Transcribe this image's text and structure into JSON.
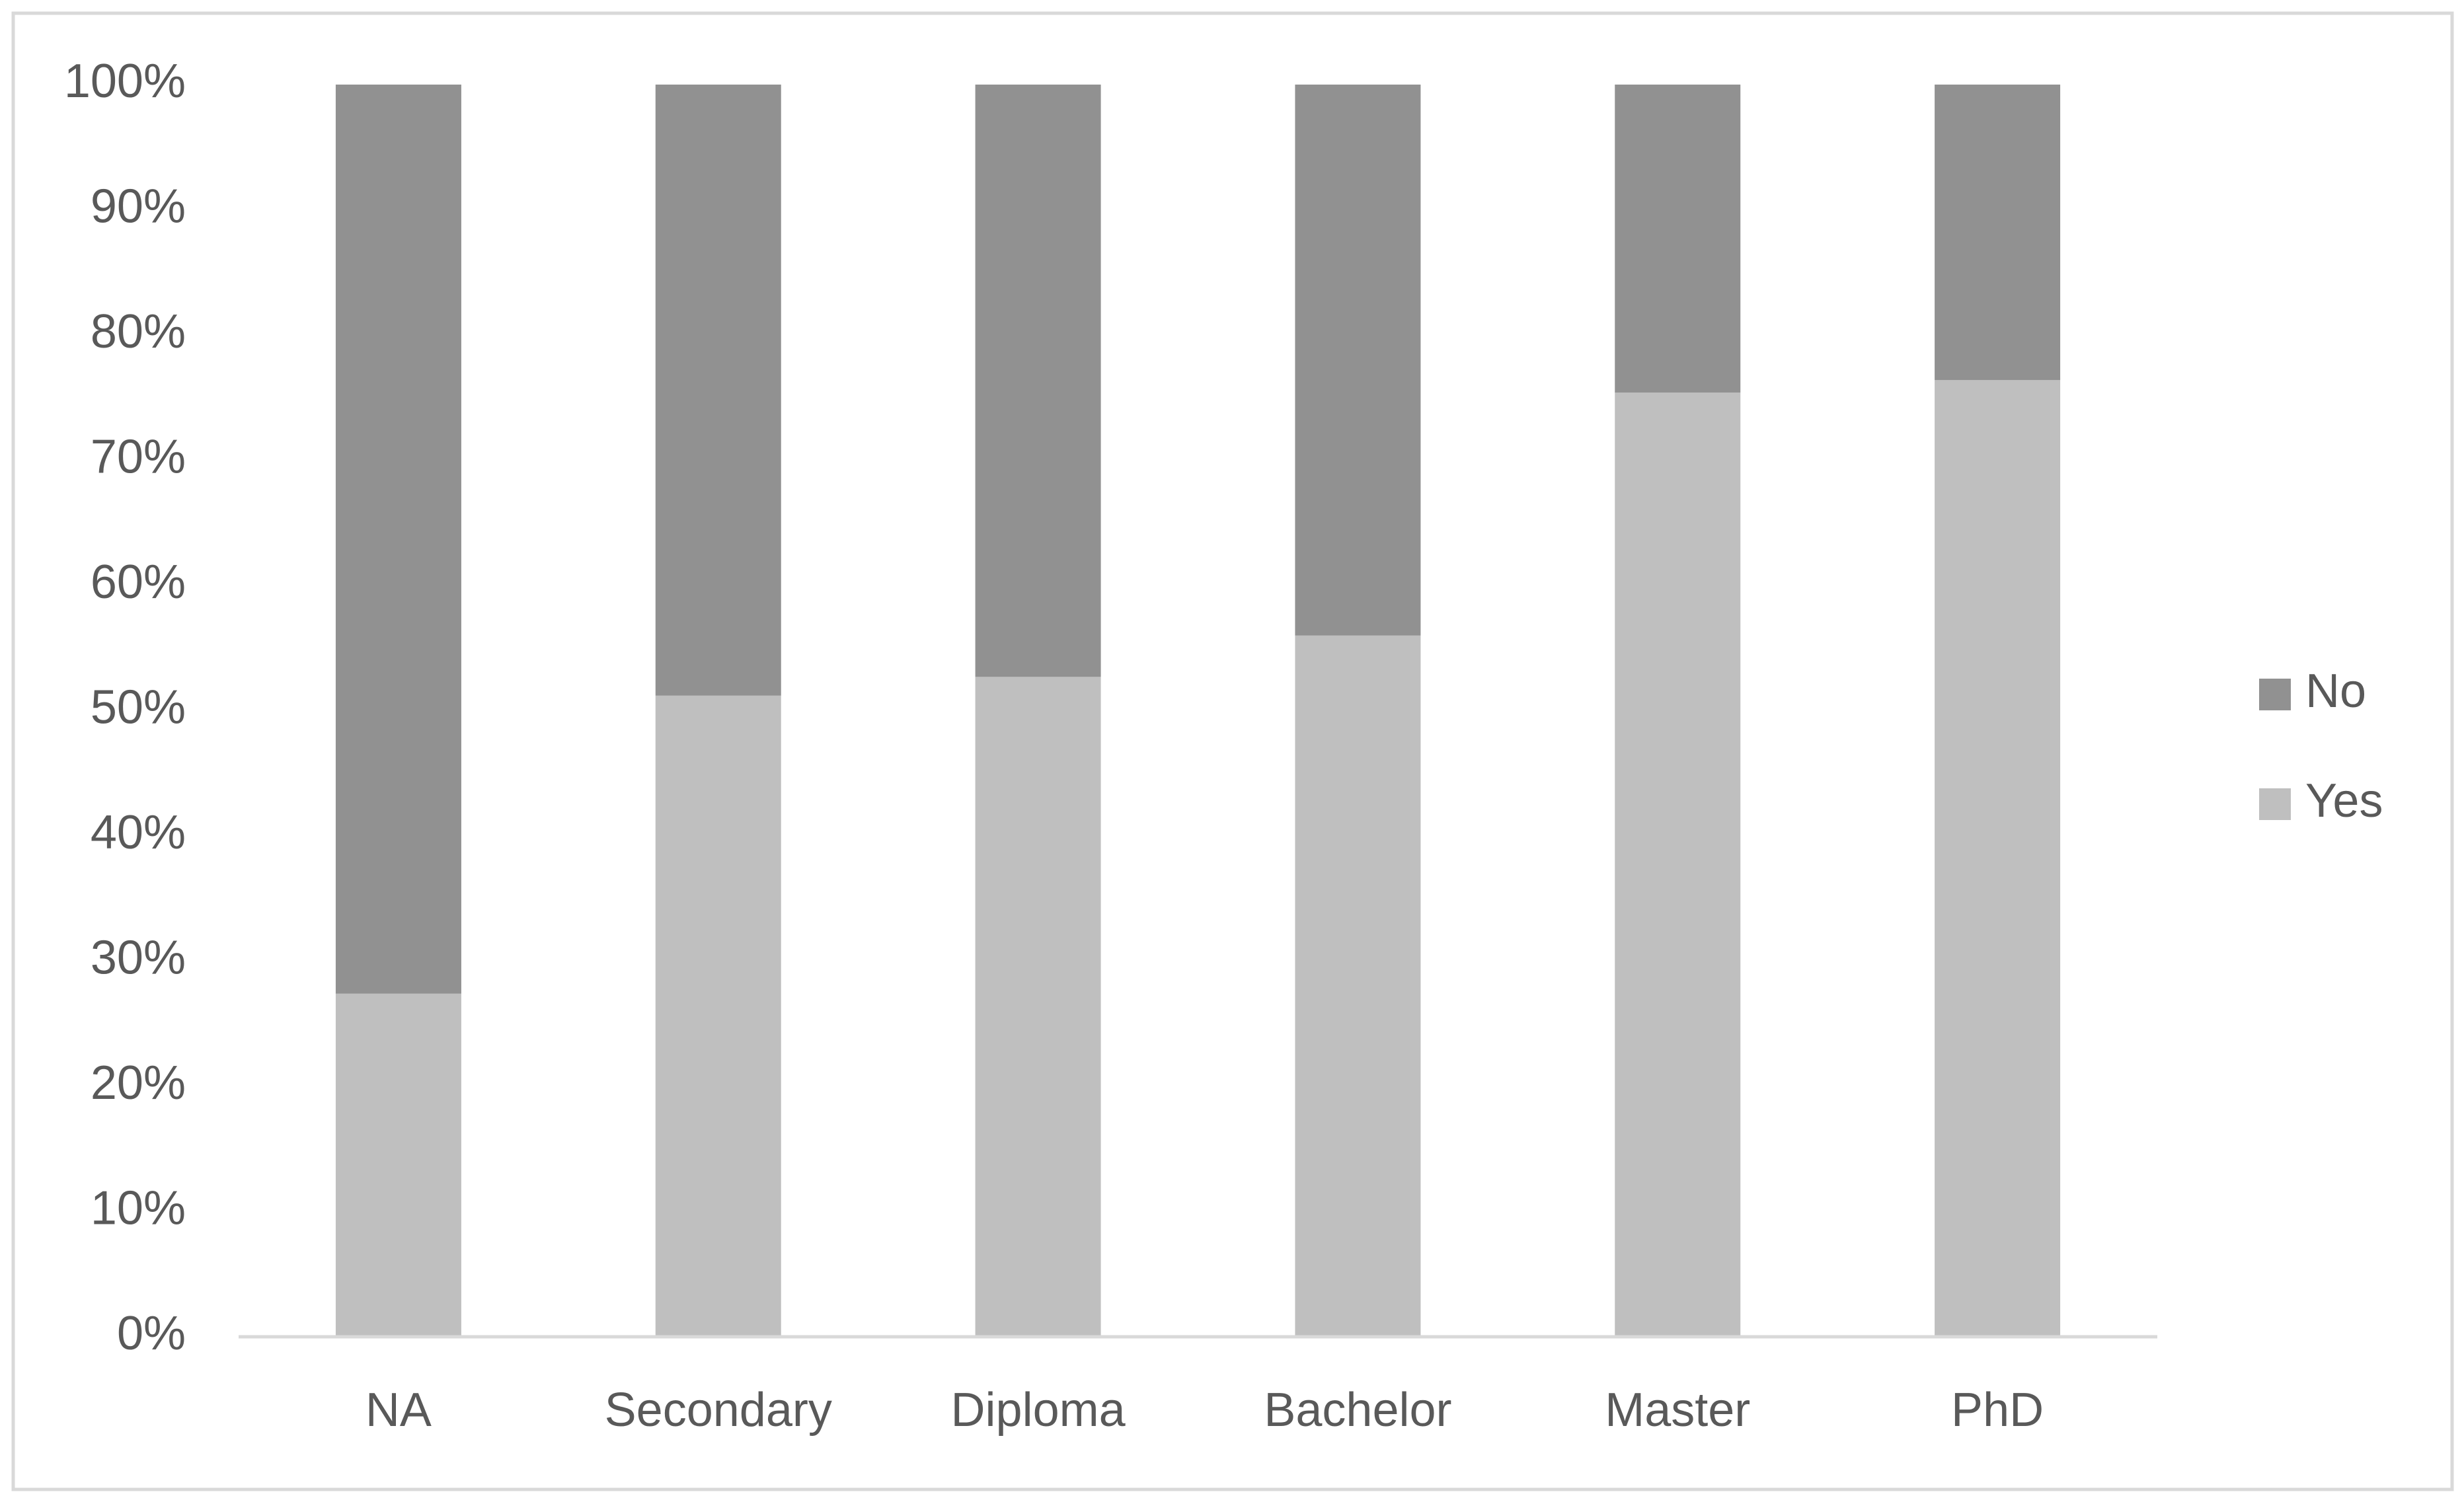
{
  "chart_data": {
    "type": "stacked_bar_100",
    "categories": [
      "NA",
      "Secondary",
      "Diploma",
      "Bachelor",
      "Master",
      "PhD"
    ],
    "series": [
      {
        "name": "Yes",
        "color": "#bfbfbf",
        "values": [
          27.4,
          51.2,
          52.7,
          56.0,
          75.4,
          76.4
        ]
      },
      {
        "name": "No",
        "color": "#919191",
        "values": [
          72.6,
          48.8,
          47.3,
          44.0,
          24.6,
          23.6
        ]
      }
    ],
    "ylim": [
      0,
      100
    ],
    "yticks": [
      {
        "value": 0,
        "label": "0%"
      },
      {
        "value": 10,
        "label": "10%"
      },
      {
        "value": 20,
        "label": "20%"
      },
      {
        "value": 30,
        "label": "30%"
      },
      {
        "value": 40,
        "label": "40%"
      },
      {
        "value": 50,
        "label": "50%"
      },
      {
        "value": 60,
        "label": "60%"
      },
      {
        "value": 70,
        "label": "70%"
      },
      {
        "value": 80,
        "label": "80%"
      },
      {
        "value": 90,
        "label": "90%"
      },
      {
        "value": 100,
        "label": "100%"
      }
    ],
    "legend": "right"
  }
}
